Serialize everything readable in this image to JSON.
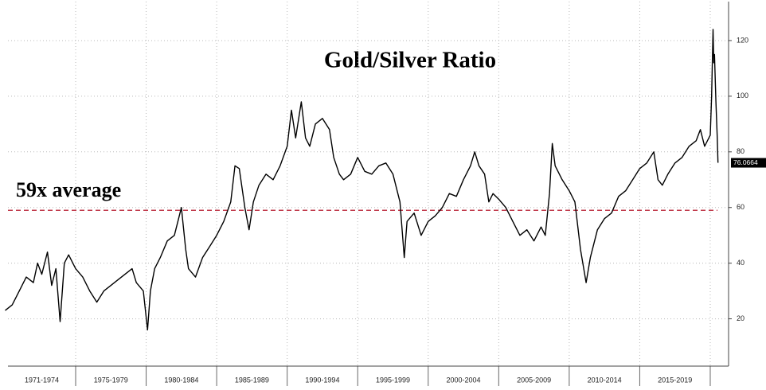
{
  "chart_data": {
    "type": "line",
    "title": "Gold/Silver Ratio",
    "color": "#000000",
    "x": [
      1970,
      1970.5,
      1971,
      1971.5,
      1972,
      1972.3,
      1972.6,
      1973,
      1973.3,
      1973.6,
      1973.9,
      1974.2,
      1974.5,
      1975,
      1975.5,
      1976,
      1976.5,
      1977,
      1977.5,
      1978,
      1978.5,
      1979,
      1979.3,
      1979.8,
      1980.1,
      1980.3,
      1980.6,
      1981,
      1981.5,
      1982,
      1982.3,
      1982.5,
      1982.8,
      1983,
      1983.5,
      1984,
      1984.5,
      1985,
      1985.5,
      1986,
      1986.3,
      1986.6,
      1987,
      1987.3,
      1987.6,
      1988,
      1988.5,
      1989,
      1989.5,
      1990,
      1990.3,
      1990.6,
      1991,
      1991.3,
      1991.6,
      1992,
      1992.5,
      1993,
      1993.3,
      1993.7,
      1994,
      1994.5,
      1995,
      1995.5,
      1996,
      1996.5,
      1997,
      1997.5,
      1998,
      1998.3,
      1998.5,
      1999,
      1999.5,
      2000,
      2000.5,
      2001,
      2001.5,
      2002,
      2002.5,
      2003,
      2003.3,
      2003.6,
      2004,
      2004.3,
      2004.6,
      2005,
      2005.5,
      2006,
      2006.5,
      2007,
      2007.5,
      2008,
      2008.3,
      2008.6,
      2008.8,
      2009,
      2009.5,
      2010,
      2010.4,
      2010.8,
      2011.2,
      2011.5,
      2012,
      2012.5,
      2013,
      2013.5,
      2014,
      2014.5,
      2015,
      2015.5,
      2016,
      2016.3,
      2016.6,
      2017,
      2017.5,
      2018,
      2018.5,
      2019,
      2019.3,
      2019.6,
      2020,
      2020.1,
      2020.2,
      2020.25,
      2020.3,
      2020.4,
      2020.5,
      2020.55
    ],
    "values": [
      23,
      25,
      30,
      35,
      33,
      40,
      36,
      44,
      32,
      38,
      19,
      40,
      43,
      38,
      35,
      30,
      26,
      30,
      32,
      34,
      36,
      38,
      33,
      30,
      16,
      30,
      38,
      42,
      48,
      50,
      56,
      60,
      45,
      38,
      35,
      42,
      46,
      50,
      55,
      62,
      75,
      74,
      60,
      52,
      62,
      68,
      72,
      70,
      75,
      82,
      95,
      85,
      98,
      85,
      82,
      90,
      92,
      88,
      78,
      72,
      70,
      72,
      78,
      73,
      72,
      75,
      76,
      72,
      62,
      42,
      55,
      58,
      50,
      55,
      57,
      60,
      65,
      64,
      70,
      75,
      80,
      75,
      72,
      62,
      65,
      63,
      60,
      55,
      50,
      52,
      48,
      53,
      50,
      65,
      83,
      75,
      70,
      66,
      62,
      45,
      33,
      42,
      52,
      56,
      58,
      64,
      66,
      70,
      74,
      76,
      80,
      70,
      68,
      72,
      76,
      78,
      82,
      84,
      88,
      82,
      86,
      100,
      124,
      112,
      115,
      98,
      85,
      76.0664
    ],
    "xlim": [
      1970.2,
      2021.3
    ],
    "ylim": [
      3,
      134
    ],
    "yticks": [
      20,
      40,
      60,
      80,
      100,
      120
    ],
    "grid": true,
    "x_periods": [
      {
        "label": "1971-1974",
        "from": 1970.2,
        "to": 1975
      },
      {
        "label": "1975-1979",
        "from": 1975,
        "to": 1980
      },
      {
        "label": "1980-1984",
        "from": 1980,
        "to": 1985
      },
      {
        "label": "1985-1989",
        "from": 1985,
        "to": 1990
      },
      {
        "label": "1990-1994",
        "from": 1990,
        "to": 1995
      },
      {
        "label": "1995-1999",
        "from": 1995,
        "to": 2000
      },
      {
        "label": "2000-2004",
        "from": 2000,
        "to": 2005
      },
      {
        "label": "2005-2009",
        "from": 2005,
        "to": 2010
      },
      {
        "label": "2010-2014",
        "from": 2010,
        "to": 2015
      },
      {
        "label": "2015-2019",
        "from": 2015,
        "to": 2020
      }
    ],
    "average_line": {
      "value": 59,
      "label": "59x average",
      "color": "#c0394b"
    }
  }
}
